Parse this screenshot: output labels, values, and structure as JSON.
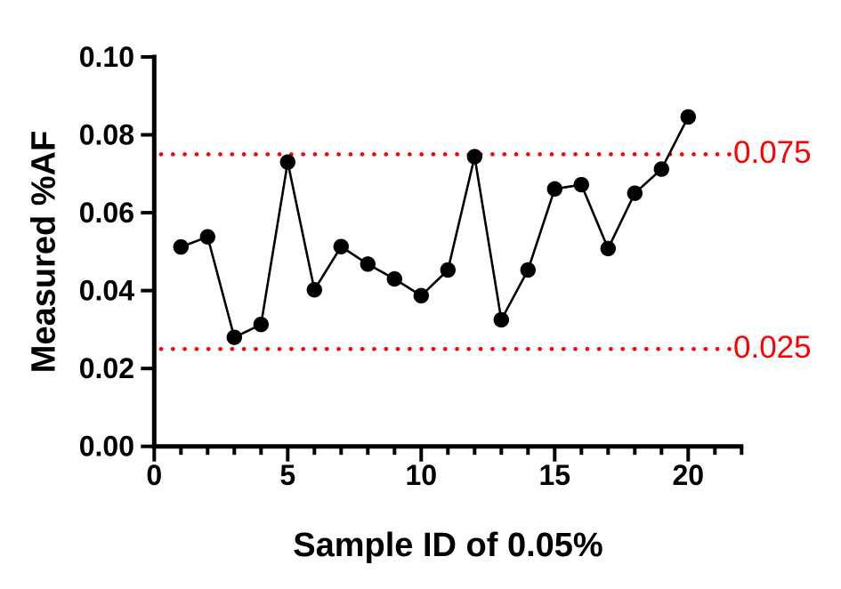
{
  "figure": {
    "background": "#FFFFFF"
  },
  "chart_data": {
    "type": "line",
    "title": "",
    "xlabel": "Sample ID of 0.05%",
    "ylabel": "Measured %AF",
    "x": [
      1,
      2,
      3,
      4,
      5,
      6,
      7,
      8,
      9,
      10,
      11,
      12,
      13,
      14,
      15,
      16,
      17,
      18,
      19,
      20
    ],
    "series": [
      {
        "name": "Measured %AF",
        "values": [
          0.0512,
          0.0538,
          0.028,
          0.0313,
          0.073,
          0.0402,
          0.0513,
          0.0468,
          0.043,
          0.0387,
          0.0453,
          0.0744,
          0.0325,
          0.0453,
          0.0661,
          0.0672,
          0.0508,
          0.065,
          0.0712,
          0.0846
        ]
      }
    ],
    "xlim": [
      0,
      22
    ],
    "ylim": [
      0,
      0.1
    ],
    "x_major_ticks": [
      0,
      5,
      10,
      15,
      20
    ],
    "x_major_tick_labels": [
      "0",
      "5",
      "10",
      "15",
      "20"
    ],
    "x_minor_tick_step": 1,
    "y_ticks": [
      0,
      0.02,
      0.04,
      0.06,
      0.08,
      0.1
    ],
    "y_tick_labels": [
      "0.00",
      "0.02",
      "0.04",
      "0.06",
      "0.08",
      "0.10"
    ],
    "grid": false,
    "legend": "none",
    "reference_lines": [
      {
        "value": 0.075,
        "label": "0.075",
        "style": "dotted",
        "color": "#FF0000"
      },
      {
        "value": 0.025,
        "label": "0.025",
        "style": "dotted",
        "color": "#FF0000"
      }
    ],
    "marker": {
      "shape": "circle",
      "color": "#000000",
      "size": 8.7
    },
    "line_color": "#000000",
    "axis_color": "#000000"
  }
}
